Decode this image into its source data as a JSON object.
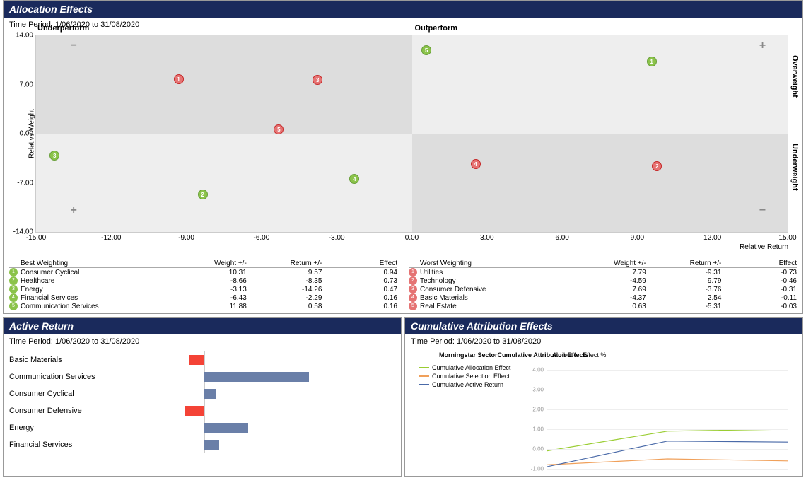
{
  "allocation_effects": {
    "title": "Allocation Effects",
    "time_period": "Time Period: 1/06/2020 to 31/08/2020",
    "scatter": {
      "type": "scatter-quadrant",
      "xlim": [
        -15,
        15
      ],
      "ylim": [
        -14,
        14
      ],
      "x_ticks": [
        -15,
        -12,
        -9,
        -6,
        -3,
        0,
        3,
        6,
        9,
        12,
        15
      ],
      "y_ticks": [
        -14,
        -7,
        0,
        7,
        14
      ],
      "x_axis_label": "Relative Return",
      "y_axis_label": "Relative Weight",
      "quadrant_labels": {
        "underperform": "Underperform",
        "outperform": "Outperform",
        "overweight": "Overweight",
        "underweight": "Underweight"
      },
      "quadrant_bg_dark": "#dddddd",
      "quadrant_bg_light": "#eeeeee",
      "point_green": "#8bc34a",
      "point_red": "#e57373",
      "points": [
        {
          "group": "best",
          "num": 1,
          "x": 9.57,
          "y": 10.31
        },
        {
          "group": "best",
          "num": 2,
          "x": -8.35,
          "y": -8.66
        },
        {
          "group": "best",
          "num": 3,
          "x": -14.26,
          "y": -3.13
        },
        {
          "group": "best",
          "num": 4,
          "x": -2.29,
          "y": -6.43
        },
        {
          "group": "best",
          "num": 5,
          "x": 0.58,
          "y": 11.88
        },
        {
          "group": "worst",
          "num": 1,
          "x": -9.31,
          "y": 7.79
        },
        {
          "group": "worst",
          "num": 2,
          "x": 9.79,
          "y": -4.59
        },
        {
          "group": "worst",
          "num": 3,
          "x": -3.76,
          "y": 7.69
        },
        {
          "group": "worst",
          "num": 4,
          "x": 2.54,
          "y": -4.37
        },
        {
          "group": "worst",
          "num": 5,
          "x": -5.31,
          "y": 0.63
        }
      ],
      "corner_markers": [
        {
          "type": "minus",
          "x": -13.5,
          "y": 12.5
        },
        {
          "type": "plus",
          "x": 14,
          "y": 12.5
        },
        {
          "type": "plus",
          "x": -13.5,
          "y": -11
        },
        {
          "type": "minus",
          "x": 14,
          "y": -11
        }
      ]
    },
    "best_table": {
      "header": "Best Weighting",
      "cols": {
        "weight": "Weight +/-",
        "return": "Return +/-",
        "effect": "Effect"
      },
      "rows": [
        {
          "n": 1,
          "name": "Consumer Cyclical",
          "weight": "10.31",
          "return": "9.57",
          "effect": "0.94"
        },
        {
          "n": 2,
          "name": "Healthcare",
          "weight": "-8.66",
          "return": "-8.35",
          "effect": "0.73"
        },
        {
          "n": 3,
          "name": "Energy",
          "weight": "-3.13",
          "return": "-14.26",
          "effect": "0.47"
        },
        {
          "n": 4,
          "name": "Financial Services",
          "weight": "-6.43",
          "return": "-2.29",
          "effect": "0.16"
        },
        {
          "n": 5,
          "name": "Communication Services",
          "weight": "11.88",
          "return": "0.58",
          "effect": "0.16"
        }
      ]
    },
    "worst_table": {
      "header": "Worst Weighting",
      "cols": {
        "weight": "Weight +/-",
        "return": "Return +/-",
        "effect": "Effect"
      },
      "rows": [
        {
          "n": 1,
          "name": "Utilities",
          "weight": "7.79",
          "return": "-9.31",
          "effect": "-0.73"
        },
        {
          "n": 2,
          "name": "Technology",
          "weight": "-4.59",
          "return": "9.79",
          "effect": "-0.46"
        },
        {
          "n": 3,
          "name": "Consumer Defensive",
          "weight": "7.69",
          "return": "-3.76",
          "effect": "-0.31"
        },
        {
          "n": 4,
          "name": "Basic Materials",
          "weight": "-4.37",
          "return": "2.54",
          "effect": "-0.11"
        },
        {
          "n": 5,
          "name": "Real Estate",
          "weight": "0.63",
          "return": "-5.31",
          "effect": "-0.03"
        }
      ]
    }
  },
  "active_return": {
    "title": "Active Return",
    "time_period": "Time Period: 1/06/2020 to 31/08/2020",
    "type": "bar-horizontal",
    "zero_position_pct": 30,
    "positive_color": "#6a7fa8",
    "negative_color": "#f44336",
    "rows": [
      {
        "name": "Basic Materials",
        "value": -0.8
      },
      {
        "name": "Communication Services",
        "value": 5.5
      },
      {
        "name": "Consumer Cyclical",
        "value": 0.6
      },
      {
        "name": "Consumer Defensive",
        "value": -1.0
      },
      {
        "name": "Energy",
        "value": 2.3
      },
      {
        "name": "Financial Services",
        "value": 0.8
      }
    ],
    "bar_scale_max": 10
  },
  "cumulative_attribution": {
    "title": "Cumulative Attribution Effects",
    "time_period": "Time Period: 1/06/2020 to 31/08/2020",
    "chart_title": "Morningstar SectorCumulative Attribution Effects",
    "y_title": "Attribution Effect %",
    "type": "line",
    "ylim": [
      -1,
      4
    ],
    "y_ticks": [
      -1,
      0,
      1,
      2,
      3,
      4
    ],
    "grid_color": "#eeeeee",
    "series": [
      {
        "name": "Cumulative Allocation Effect",
        "color": "#9acd32",
        "points": [
          [
            0,
            -0.1
          ],
          [
            1,
            0.9
          ],
          [
            2,
            1.0
          ]
        ]
      },
      {
        "name": "Cumulative Selection Effect",
        "color": "#f0a05a",
        "points": [
          [
            0,
            -0.8
          ],
          [
            1,
            -0.5
          ],
          [
            2,
            -0.6
          ]
        ]
      },
      {
        "name": "Cumulative Active Return",
        "color": "#4a6aa8",
        "points": [
          [
            0,
            -0.9
          ],
          [
            1,
            0.4
          ],
          [
            2,
            0.35
          ]
        ]
      }
    ],
    "xsteps": 3
  },
  "colors": {
    "header_bg": "#1a2a5c"
  }
}
